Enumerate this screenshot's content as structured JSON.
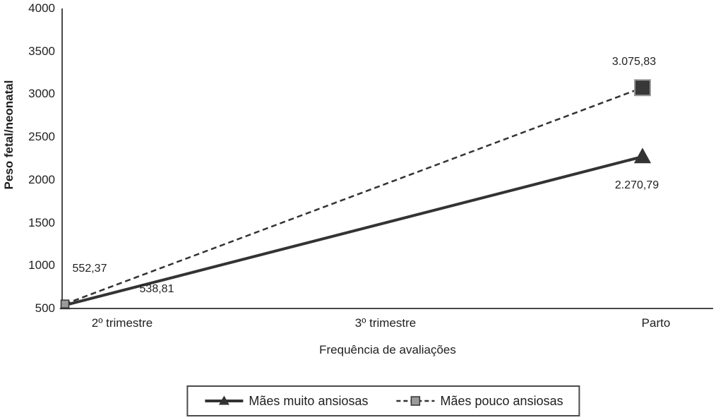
{
  "chart_data": {
    "type": "line",
    "title": "",
    "ylabel": "Peso fetal/neonatal",
    "xlabel": "Frequência de avaliações",
    "ylim": [
      500,
      4000
    ],
    "yticks": [
      4000,
      3500,
      3000,
      2500,
      2000,
      1500,
      1000,
      500
    ],
    "categories": [
      "2º trimestre",
      "3º trimestre",
      "Parto"
    ],
    "grid": false,
    "legend_position": "bottom",
    "colors": {
      "line": "#333333",
      "square_fill_light": "#9a9a9a",
      "square_fill_dark": "#383838",
      "axis": "#4a4a4a"
    },
    "series": [
      {
        "name": "Mães muito ansiosas",
        "marker": "triangle",
        "line_style": "solid",
        "color": "#333333",
        "points": [
          {
            "category": "2º trimestre",
            "value": 538.81,
            "label": "538,81"
          },
          {
            "category": "Parto",
            "value": 2270.79,
            "label": "2.270,79"
          }
        ]
      },
      {
        "name": "Mães pouco ansiosas",
        "marker": "square",
        "line_style": "dashed",
        "color": "#333333",
        "points": [
          {
            "category": "2º trimestre",
            "value": 552.37,
            "label": "552,37"
          },
          {
            "category": "Parto",
            "value": 3075.83,
            "label": "3.075,83"
          }
        ]
      }
    ]
  }
}
